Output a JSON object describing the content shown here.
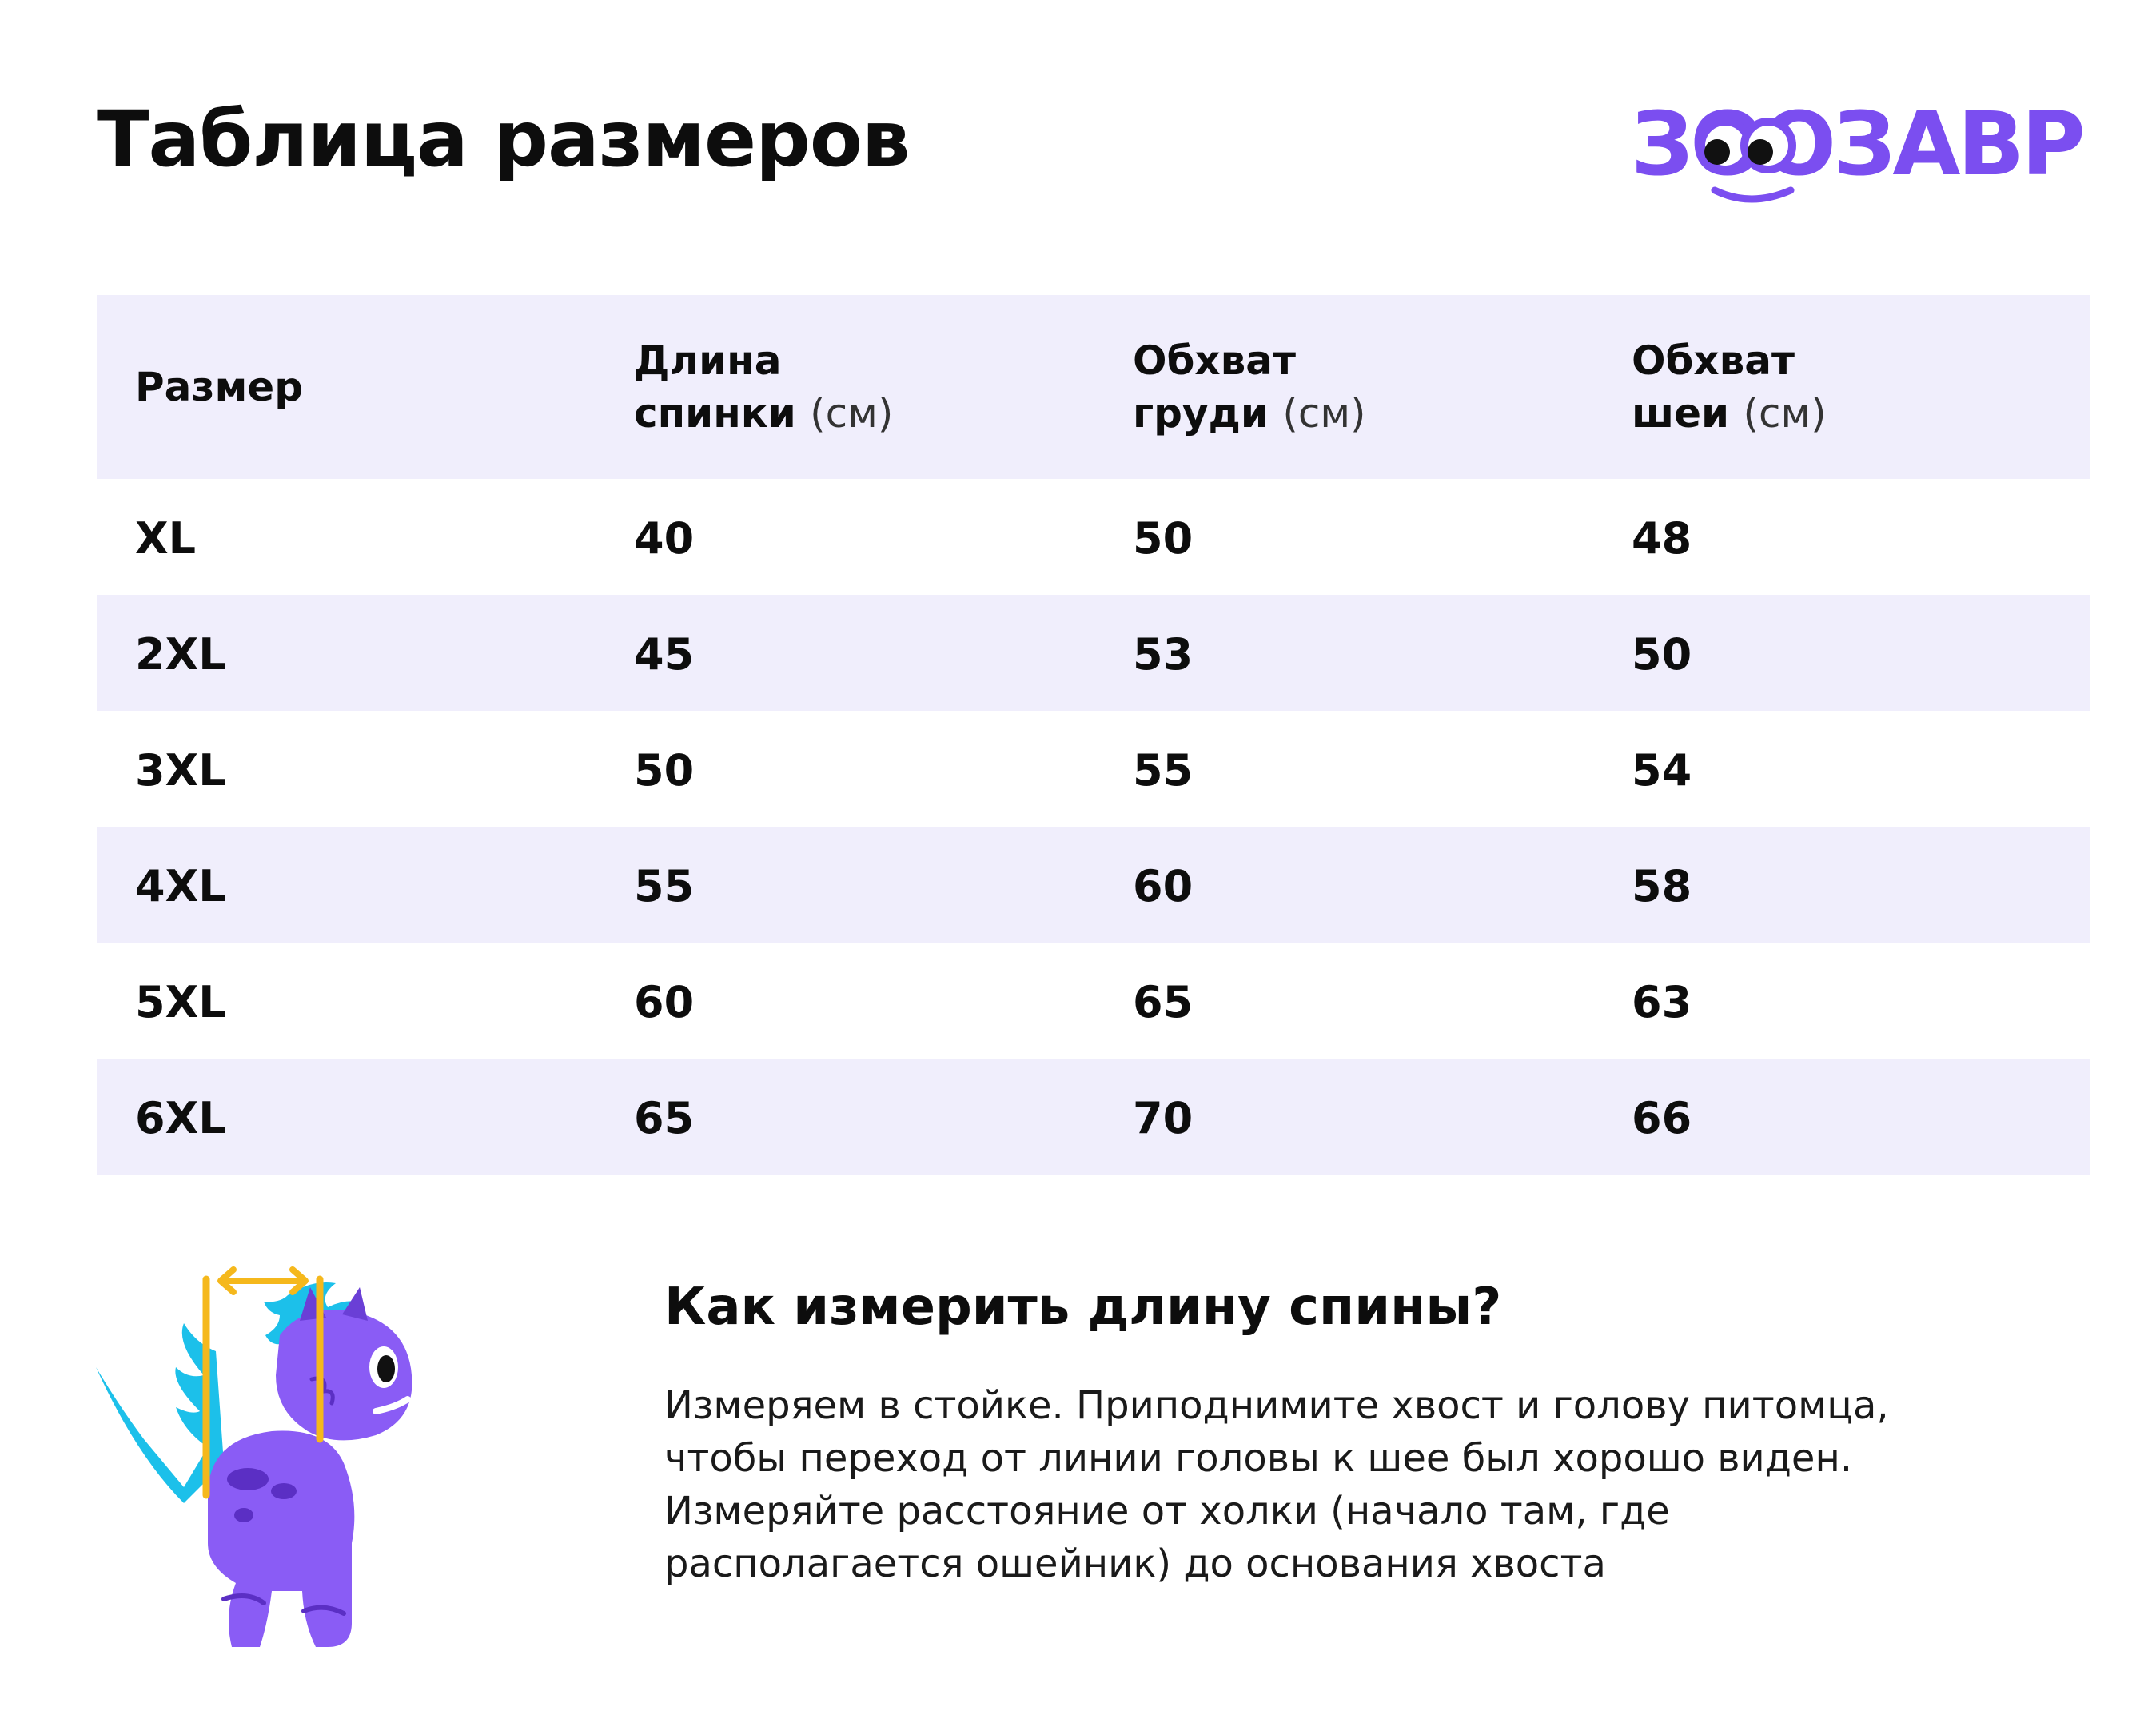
{
  "title": "Таблица размеров",
  "brand": {
    "logo_text": "ЗООЗАВР",
    "accent_color": "#7b4ef0",
    "row_shading_color": "#f0eefc",
    "dino_body_color": "#8a5cf5",
    "dino_crest_color": "#1cc0ea",
    "measure_line_color": "#f5b81c"
  },
  "table": {
    "headers": [
      {
        "line1": "Размер",
        "line2": "",
        "unit": ""
      },
      {
        "line1": "Длина",
        "line2": "спинки",
        "unit": "(см)"
      },
      {
        "line1": "Обхват",
        "line2": "груди",
        "unit": "(см)"
      },
      {
        "line1": "Обхват",
        "line2": "шеи",
        "unit": "(см)"
      }
    ],
    "rows": [
      [
        "XL",
        "40",
        "50",
        "48"
      ],
      [
        "2XL",
        "45",
        "53",
        "50"
      ],
      [
        "3XL",
        "50",
        "55",
        "54"
      ],
      [
        "4XL",
        "55",
        "60",
        "58"
      ],
      [
        "5XL",
        "60",
        "65",
        "63"
      ],
      [
        "6XL",
        "65",
        "70",
        "66"
      ]
    ]
  },
  "how_to": {
    "title": "Как измерить длину спины?",
    "text": "Измеряем в стойке. Приподнимите хвост и голову питомца, чтобы переход от линии головы к шее был хорошо виден. Измеряйте расстояние от холки (начало там, где располагается ошейник) до основания хвоста"
  },
  "illustration": {
    "icon": "dino-measurement-icon"
  }
}
